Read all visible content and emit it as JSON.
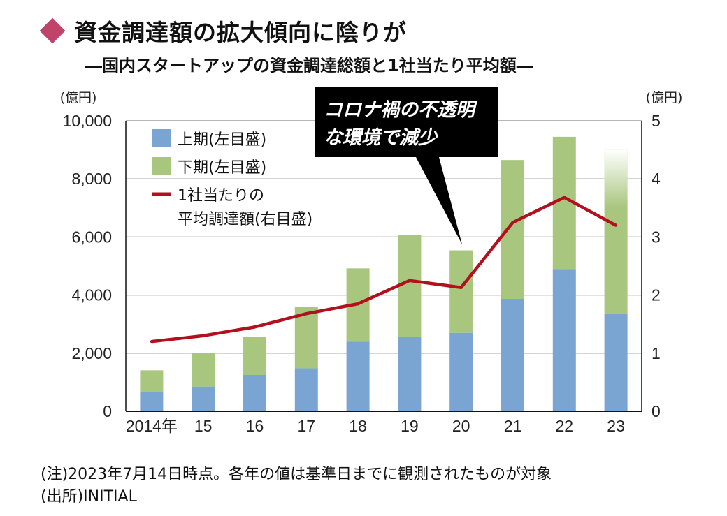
{
  "header": {
    "title": "資金調達額の拡大傾向に陰りが",
    "subtitle": "―国内スタートアップの資金調達総額と1社当たり平均額―"
  },
  "colors": {
    "first_half": "#7aa5d2",
    "second_half": "#a9c67f",
    "average_line": "#b3101e",
    "callout_bg": "#000000",
    "accent_diamond": "#c0436a",
    "grid": "#8c8c8c"
  },
  "chart_data": {
    "type": "bar",
    "stacked": true,
    "categories": [
      "2014年",
      "15",
      "16",
      "17",
      "18",
      "19",
      "20",
      "21",
      "22",
      "23"
    ],
    "series": [
      {
        "name": "上期(左目盛)",
        "axis": "left",
        "values": [
          650,
          850,
          1250,
          1480,
          2400,
          2550,
          2700,
          3870,
          4900,
          3350
        ]
      },
      {
        "name": "下期(左目盛)",
        "axis": "left",
        "values": [
          760,
          1150,
          1310,
          2120,
          2520,
          3510,
          2840,
          4780,
          4550,
          5650
        ]
      },
      {
        "name": "1社当たりの平均調達額(右目盛)",
        "type": "line",
        "axis": "right",
        "values": [
          1.2,
          1.3,
          1.45,
          1.68,
          1.85,
          2.25,
          2.13,
          3.25,
          3.68,
          3.2
        ]
      }
    ],
    "left_axis": {
      "unit": "(億円)",
      "ylim": [
        0,
        10000
      ],
      "ticks": [
        "0",
        "2,000",
        "4,000",
        "6,000",
        "8,000",
        "10,000"
      ]
    },
    "right_axis": {
      "unit": "(億円)",
      "ylim": [
        0,
        5
      ],
      "ticks": [
        "0",
        "1",
        "2",
        "3",
        "4",
        "5"
      ]
    },
    "legend": {
      "position": "top-left",
      "items": [
        "上期(左目盛)",
        "下期(左目盛)",
        "1社当たりの",
        "平均調達額(右目盛)"
      ]
    },
    "annotation": {
      "lines": [
        "コロナ禍の不透明",
        "な環境で減少"
      ],
      "points_to": "20"
    },
    "grid": true
  },
  "footer": {
    "note": "(注)2023年7月14日時点。各年の値は基準日までに観測されたものが対象",
    "source": "(出所)INITIAL"
  }
}
